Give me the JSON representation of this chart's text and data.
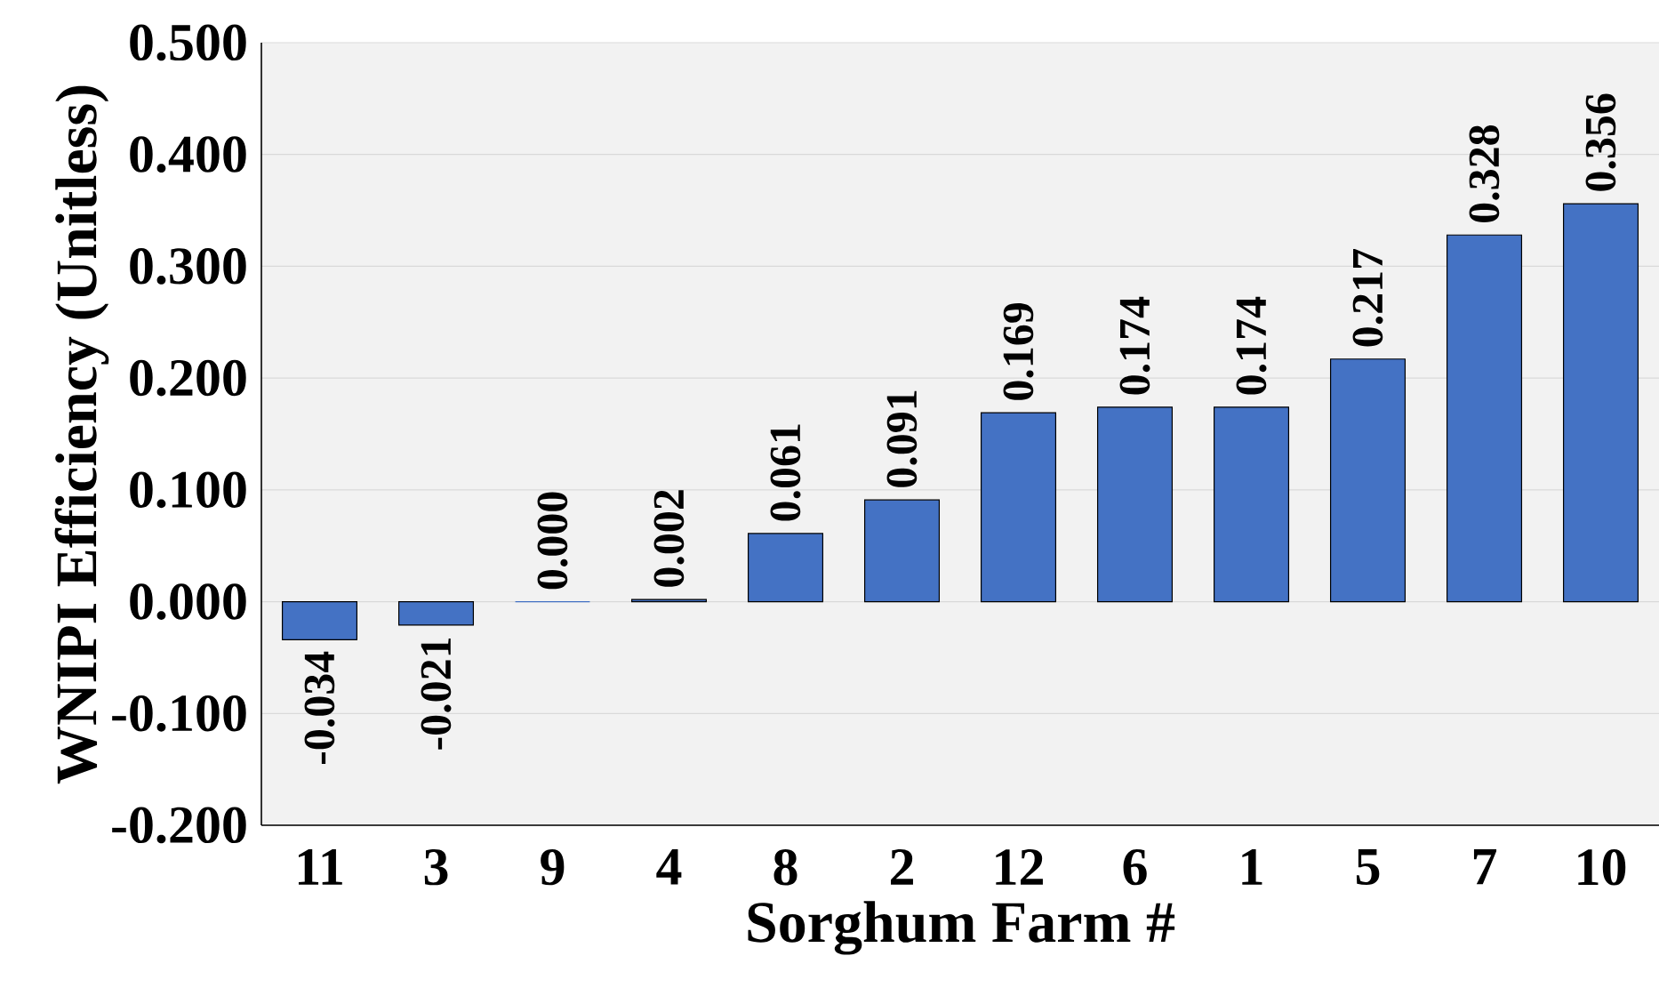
{
  "chart_data": {
    "type": "bar",
    "xlabel": "Sorghum Farm #",
    "ylabel": "WNIPI Efficiency (Unitless)",
    "categories": [
      "11",
      "3",
      "9",
      "4",
      "8",
      "2",
      "12",
      "6",
      "1",
      "5",
      "7",
      "10"
    ],
    "values": [
      -0.034,
      -0.021,
      0.0,
      0.002,
      0.061,
      0.091,
      0.169,
      0.174,
      0.174,
      0.217,
      0.328,
      0.356
    ],
    "value_labels": [
      "-0.034",
      "-0.021",
      "0.000",
      "0.002",
      "0.061",
      "0.091",
      "0.169",
      "0.174",
      "0.174",
      "0.217",
      "0.328",
      "0.356"
    ],
    "color": "#4472c4",
    "ylim": [
      -0.2,
      0.5
    ],
    "yticks": [
      {
        "value": -0.2,
        "label": "-0.200"
      },
      {
        "value": -0.1,
        "label": "-0.100"
      },
      {
        "value": 0.0,
        "label": "0.000"
      },
      {
        "value": 0.1,
        "label": "0.100"
      },
      {
        "value": 0.2,
        "label": "0.200"
      },
      {
        "value": 0.3,
        "label": "0.300"
      },
      {
        "value": 0.4,
        "label": "0.400"
      },
      {
        "value": 0.5,
        "label": "0.500"
      }
    ],
    "grid": "y"
  }
}
